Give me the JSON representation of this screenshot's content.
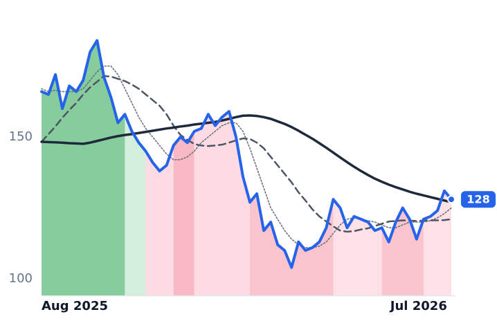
{
  "chart_data": {
    "type": "line",
    "categories": [
      "Aug 2025",
      null,
      null,
      null,
      null,
      null,
      null,
      null,
      null,
      null,
      null,
      null,
      null,
      null,
      null,
      null,
      null,
      null,
      null,
      null,
      null,
      null,
      null,
      null,
      null,
      null,
      null,
      null,
      null,
      null,
      null,
      null,
      null,
      null,
      null,
      null,
      null,
      null,
      null,
      null,
      null,
      null,
      null,
      null,
      null,
      null,
      null,
      null,
      null,
      null,
      null,
      null,
      null,
      null,
      "Jul 2026",
      null,
      null,
      null,
      null,
      null
    ],
    "series": [
      {
        "color": "#2563eb",
        "style": "solid",
        "width": 4,
        "values": [
          166,
          165,
          172,
          160,
          168,
          166,
          170,
          180,
          184,
          171,
          164,
          155,
          158,
          152,
          148,
          145,
          141,
          138,
          140,
          147,
          150,
          148,
          152,
          153,
          158,
          154,
          157,
          159,
          150,
          136,
          127,
          130,
          117,
          120,
          112,
          110,
          104,
          113,
          110,
          111,
          113,
          118,
          128,
          125,
          118,
          122,
          121,
          120,
          117,
          118,
          113,
          120,
          125,
          121,
          114,
          121,
          122,
          124,
          131,
          128
        ]
      },
      {
        "color": "#1e293b",
        "style": "solid",
        "width": 3.5,
        "values": [
          148.3,
          148.2,
          148.1,
          148,
          147.8,
          147.7,
          147.6,
          148,
          148.6,
          149.2,
          149.8,
          150.3,
          150.7,
          151,
          151.4,
          151.8,
          152.2,
          152.6,
          153,
          153.3,
          153.7,
          154,
          154.4,
          154.7,
          155,
          155.3,
          155.8,
          156.4,
          157,
          157.5,
          157.6,
          157.4,
          157,
          156.4,
          155.5,
          154.6,
          153.5,
          152.2,
          150.8,
          149.4,
          147.8,
          146.2,
          144.5,
          142.8,
          141.1,
          139.5,
          138,
          136.6,
          135.3,
          134.2,
          133.2,
          132.3,
          131.5,
          130.7,
          130,
          129.4,
          128.8,
          128.2,
          127.6,
          127
        ]
      },
      {
        "color": "#4b5563",
        "style": "dashed",
        "width": 2.5,
        "values": [
          148.3,
          151,
          153.7,
          156.8,
          159.5,
          162,
          165,
          167.5,
          169.5,
          171.5,
          171.3,
          170.5,
          169.7,
          168.5,
          167,
          165,
          163,
          161,
          158,
          154,
          150.7,
          149,
          147.5,
          147,
          146.8,
          147,
          147.3,
          148,
          148.8,
          149.5,
          149.3,
          148,
          146,
          143,
          140,
          137,
          134,
          130.5,
          127.6,
          124.5,
          122,
          120.2,
          118.5,
          117,
          116.6,
          116.8,
          117.4,
          117.8,
          118.6,
          119.4,
          120.2,
          120.4,
          120.6,
          120.5,
          120.4,
          120.5,
          120.6,
          120.6,
          120.7,
          121
        ]
      },
      {
        "color": "#6b7280",
        "style": "dotted",
        "width": 1.6,
        "values": [
          167,
          166,
          166.5,
          166,
          166,
          166,
          167,
          170,
          173,
          175,
          175,
          172,
          167,
          162,
          157,
          153,
          150,
          147,
          144,
          142,
          142,
          143,
          145,
          148,
          150,
          152,
          154,
          155,
          155,
          152,
          146,
          139,
          132,
          125,
          121,
          117,
          114,
          112,
          111,
          111,
          111.5,
          113,
          116,
          119,
          121,
          121.5,
          121,
          120.5,
          120,
          119,
          118,
          118,
          119,
          120,
          120,
          120,
          120.5,
          121.5,
          123,
          125
        ]
      }
    ],
    "regions": [
      {
        "start": 0,
        "end": 12,
        "color": "#86cc9c"
      },
      {
        "start": 12,
        "end": 15,
        "color": "#d3eedb"
      },
      {
        "start": 15,
        "end": 19,
        "color": "#fcdce2"
      },
      {
        "start": 19,
        "end": 22,
        "color": "#f8b8c4"
      },
      {
        "start": 22,
        "end": 30,
        "color": "#fcdce2"
      },
      {
        "start": 30,
        "end": 42,
        "color": "#f9c4ce"
      },
      {
        "start": 42,
        "end": 49,
        "color": "#fde1e6"
      },
      {
        "start": 49,
        "end": 55,
        "color": "#f9c4ce"
      },
      {
        "start": 55,
        "end": 59,
        "color": "#fde1e6"
      }
    ],
    "ylim": [
      94,
      192
    ],
    "yticks": [
      100,
      150
    ]
  }
}
